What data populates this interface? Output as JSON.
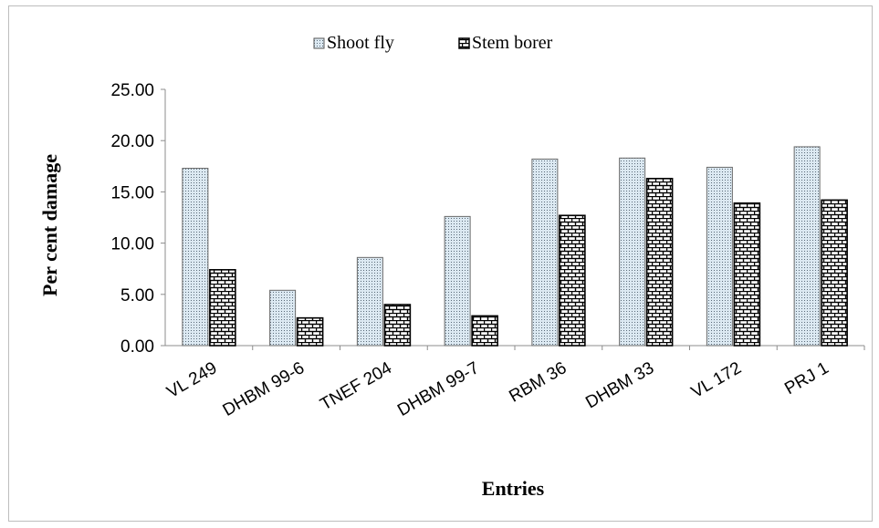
{
  "chart_data": {
    "type": "bar",
    "title": "",
    "xlabel": "Entries",
    "ylabel": "Per cent damage",
    "ylim": [
      0,
      25
    ],
    "yticks": [
      "0.00",
      "5.00",
      "10.00",
      "15.00",
      "20.00",
      "25.00"
    ],
    "grid": false,
    "legend_position": "top",
    "categories": [
      "VL 249",
      "DHBM 99-6",
      "TNEF 204",
      "DHBM 99-7",
      "RBM 36",
      "DHBM 33",
      "VL 172",
      "PRJ 1"
    ],
    "series": [
      {
        "name": "Shoot fly",
        "pattern": "dots",
        "color": "#dce9f2",
        "values": [
          17.3,
          5.4,
          8.6,
          12.6,
          18.2,
          18.3,
          17.4,
          19.4
        ]
      },
      {
        "name": "Stem borer",
        "pattern": "brick",
        "color": "#000000",
        "values": [
          7.4,
          2.7,
          4.0,
          2.9,
          12.7,
          16.3,
          13.9,
          14.2
        ]
      }
    ]
  }
}
